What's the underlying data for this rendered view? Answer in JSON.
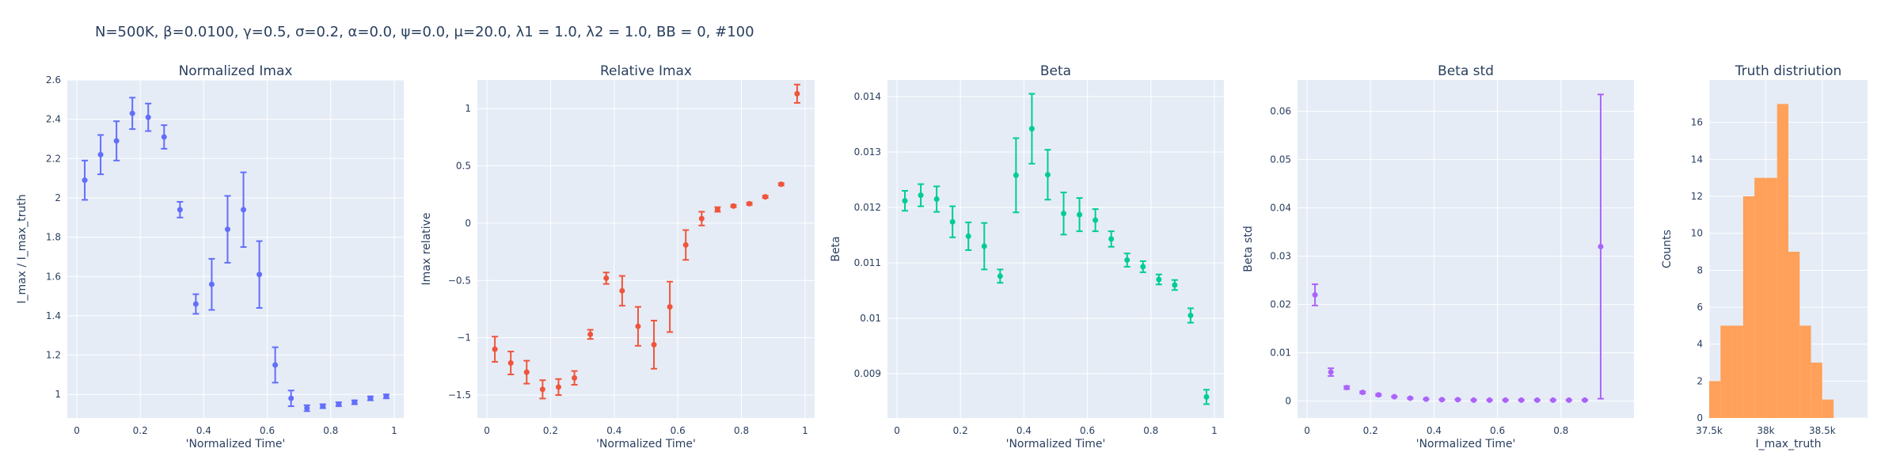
{
  "figure_title": "N=500K, β=0.0100, γ=0.5, σ=0.2,  α=0.0, ψ=0.0, μ=20.0, λ1 = 1.0, λ2 = 1.0, BB = 0, #100",
  "colors": {
    "plot_bg": "#e5ecf6",
    "grid": "#ffffff",
    "text": "#2a3f5f",
    "series1": "#636efa",
    "series2": "#ef553b",
    "series3": "#00cc96",
    "series4": "#ab63fa",
    "hist": "#ffa15a"
  },
  "chart_data": [
    {
      "type": "scatter",
      "title": "Normalized Imax",
      "xlabel": "'Normalized Time'",
      "ylabel": "I_max / I_max_truth",
      "xlim": [
        -0.03,
        1.03
      ],
      "ylim": [
        0.88,
        2.6
      ],
      "xticks": [
        0,
        0.2,
        0.4,
        0.6,
        0.8,
        1
      ],
      "xticklabels": [
        "0",
        "0.2",
        "0.4",
        "0.6",
        "0.8",
        "1"
      ],
      "yticks": [
        1,
        1.2,
        1.4,
        1.6,
        1.8,
        2,
        2.2,
        2.4,
        2.6
      ],
      "yticklabels": [
        "1",
        "1.2",
        "1.4",
        "1.6",
        "1.8",
        "2",
        "2.2",
        "2.4",
        "2.6"
      ],
      "grid": true,
      "color": "#636efa",
      "x": [
        0.025,
        0.075,
        0.125,
        0.175,
        0.225,
        0.275,
        0.325,
        0.375,
        0.425,
        0.475,
        0.525,
        0.575,
        0.625,
        0.675,
        0.725,
        0.775,
        0.825,
        0.875,
        0.925,
        0.975
      ],
      "y": [
        2.09,
        2.22,
        2.29,
        2.43,
        2.41,
        2.31,
        1.94,
        1.46,
        1.56,
        1.84,
        1.94,
        1.61,
        1.15,
        0.98,
        0.93,
        0.94,
        0.95,
        0.96,
        0.98,
        0.99
      ],
      "err": [
        0.1,
        0.1,
        0.1,
        0.08,
        0.07,
        0.06,
        0.04,
        0.05,
        0.13,
        0.17,
        0.19,
        0.17,
        0.09,
        0.04,
        0.015,
        0.01,
        0.01,
        0.01,
        0.01,
        0.01
      ]
    },
    {
      "type": "scatter",
      "title": "Relative Imax",
      "xlabel": "'Normalized Time'",
      "ylabel": "Imax relative",
      "xlim": [
        -0.03,
        1.03
      ],
      "ylim": [
        -1.7,
        1.25
      ],
      "xticks": [
        0,
        0.2,
        0.4,
        0.6,
        0.8,
        1
      ],
      "xticklabels": [
        "0",
        "0.2",
        "0.4",
        "0.6",
        "0.8",
        "1"
      ],
      "yticks": [
        -1.5,
        -1,
        -0.5,
        0,
        0.5,
        1
      ],
      "yticklabels": [
        "−1.5",
        "−1",
        "−0.5",
        "0",
        "0.5",
        "1"
      ],
      "grid": true,
      "color": "#ef553b",
      "x": [
        0.025,
        0.075,
        0.125,
        0.175,
        0.225,
        0.275,
        0.325,
        0.375,
        0.425,
        0.475,
        0.525,
        0.575,
        0.625,
        0.675,
        0.725,
        0.775,
        0.825,
        0.875,
        0.925,
        0.975
      ],
      "y": [
        -1.1,
        -1.22,
        -1.3,
        -1.45,
        -1.43,
        -1.35,
        -0.97,
        -0.48,
        -0.59,
        -0.9,
        -1.06,
        -0.73,
        -0.19,
        0.04,
        0.12,
        0.15,
        0.17,
        0.23,
        0.34,
        1.13
      ],
      "err": [
        0.11,
        0.1,
        0.1,
        0.08,
        0.07,
        0.06,
        0.04,
        0.05,
        0.13,
        0.17,
        0.21,
        0.22,
        0.13,
        0.06,
        0.02,
        0.01,
        0.01,
        0.01,
        0.01,
        0.08
      ]
    },
    {
      "type": "scatter",
      "title": "Beta",
      "xlabel": "'Normalized Time'",
      "ylabel": "Beta",
      "xlim": [
        -0.03,
        1.03
      ],
      "ylim": [
        0.0082,
        0.0143
      ],
      "xticks": [
        0,
        0.2,
        0.4,
        0.6,
        0.8,
        1
      ],
      "xticklabels": [
        "0",
        "0.2",
        "0.4",
        "0.6",
        "0.8",
        "1"
      ],
      "yticks": [
        0.009,
        0.01,
        0.011,
        0.012,
        0.013,
        0.014
      ],
      "yticklabels": [
        "0.009",
        "0.01",
        "0.011",
        "0.012",
        "0.013",
        "0.014"
      ],
      "grid": true,
      "color": "#00cc96",
      "x": [
        0.025,
        0.075,
        0.125,
        0.175,
        0.225,
        0.275,
        0.325,
        0.375,
        0.425,
        0.475,
        0.525,
        0.575,
        0.625,
        0.675,
        0.725,
        0.775,
        0.825,
        0.875,
        0.925,
        0.975
      ],
      "y": [
        0.01212,
        0.01222,
        0.01215,
        0.01174,
        0.01148,
        0.0113,
        0.01076,
        0.01258,
        0.01342,
        0.01259,
        0.01189,
        0.01187,
        0.01177,
        0.01143,
        0.01105,
        0.01093,
        0.0107,
        0.0106,
        0.01005,
        0.00858
      ],
      "err": [
        0.00018,
        0.0002,
        0.00023,
        0.00028,
        0.00025,
        0.00042,
        0.00012,
        0.00067,
        0.00063,
        0.00045,
        0.00038,
        0.0003,
        0.0002,
        0.00014,
        0.00012,
        0.0001,
        9e-05,
        9e-05,
        0.00013,
        0.00013
      ]
    },
    {
      "type": "scatter",
      "title": "Beta std",
      "xlabel": "'Normalized Time'",
      "ylabel": "Beta std",
      "xlim": [
        -0.03,
        1.03
      ],
      "ylim": [
        -0.0035,
        0.0665
      ],
      "xticks": [
        0,
        0.2,
        0.4,
        0.6,
        0.8
      ],
      "xticklabels": [
        "0",
        "0.2",
        "0.4",
        "0.6",
        "0.8"
      ],
      "yticks": [
        0,
        0.01,
        0.02,
        0.03,
        0.04,
        0.05,
        0.06
      ],
      "yticklabels": [
        "0",
        "0.01",
        "0.02",
        "0.03",
        "0.04",
        "0.05",
        "0.06"
      ],
      "grid": true,
      "color": "#ab63fa",
      "x": [
        0.025,
        0.075,
        0.125,
        0.175,
        0.225,
        0.275,
        0.325,
        0.375,
        0.425,
        0.475,
        0.525,
        0.575,
        0.625,
        0.675,
        0.725,
        0.775,
        0.825,
        0.875,
        0.925
      ],
      "y": [
        0.022,
        0.006,
        0.0028,
        0.0018,
        0.0013,
        0.0009,
        0.0006,
        0.0004,
        0.0003,
        0.0003,
        0.0002,
        0.0002,
        0.0002,
        0.0002,
        0.0002,
        0.0002,
        0.0002,
        0.0002,
        0.032
      ],
      "err": [
        0.0022,
        0.0008,
        0.0003,
        0.0002,
        0.0002,
        0.0001,
        0.0001,
        0.0001,
        0.0001,
        0.0001,
        0.0001,
        0.0001,
        0.0001,
        0.0001,
        0.0001,
        0.0001,
        0.0001,
        0.0001,
        0.0315
      ]
    },
    {
      "type": "histogram",
      "title": "Truth distriution",
      "xlabel": "I_max_truth",
      "ylabel": "Counts",
      "xlim": [
        37500,
        38900
      ],
      "ylim": [
        0,
        18.3
      ],
      "xticks": [
        37500,
        38000,
        38500
      ],
      "xticklabels": [
        "37.5k",
        "38k",
        "38.5k"
      ],
      "yticks": [
        0,
        2,
        4,
        6,
        8,
        10,
        12,
        14,
        16
      ],
      "yticklabels": [
        "0",
        "2",
        "4",
        "6",
        "8",
        "10",
        "12",
        "14",
        "16"
      ],
      "grid": true,
      "color": "#ffa15a",
      "bin_start": 37500,
      "bin_width": 100,
      "counts": [
        2,
        5,
        5,
        12,
        13,
        13,
        17,
        9,
        5,
        3,
        1
      ]
    }
  ]
}
